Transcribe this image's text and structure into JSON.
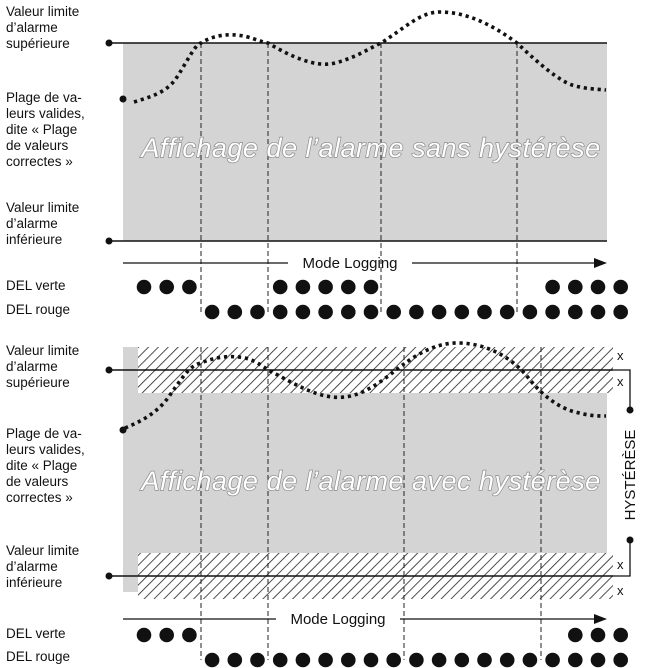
{
  "panel_top": {
    "upper_limit_label": "Valeur limite\nd’alarme\nsupérieure",
    "valid_range_label": "Plage de va-\nleurs valides,\ndite « Plage\nde valeurs\ncorrectes »",
    "lower_limit_label": "Valeur limite\nd’alarme\ninférieure",
    "title": "Affichage de l’alarme sans hystérèse",
    "mode_label": "Mode Logging",
    "led_green_label": "DEL verte",
    "led_red_label": "DEL rouge",
    "green_leds": [
      1,
      1,
      1,
      0,
      0,
      0,
      1,
      1,
      1,
      1,
      1,
      0,
      0,
      0,
      0,
      0,
      0,
      0,
      1,
      1,
      1,
      1
    ],
    "red_leds": [
      0,
      0,
      0,
      1,
      1,
      1,
      1,
      1,
      1,
      1,
      1,
      1,
      1,
      1,
      1,
      1,
      1,
      1,
      1,
      1,
      1,
      1
    ]
  },
  "panel_bottom": {
    "upper_limit_label": "Valeur limite\nd’alarme\nsupérieure",
    "valid_range_label": "Plage de va-\nleurs valides,\ndite « Plage\nde valeurs\ncorrectes »",
    "lower_limit_label": "Valeur limite\nd’alarme\ninférieure",
    "title": "Affichage de l’alarme avec hystérèse",
    "mode_label": "Mode Logging",
    "led_green_label": "DEL verte",
    "led_red_label": "DEL rouge",
    "hysteresis_label": "HYSTÉRÈSE",
    "x_label": "x",
    "green_leds": [
      1,
      1,
      1,
      0,
      0,
      0,
      0,
      0,
      0,
      0,
      0,
      0,
      0,
      0,
      0,
      0,
      0,
      0,
      0,
      1,
      1,
      1
    ],
    "red_leds": [
      0,
      0,
      0,
      1,
      1,
      1,
      1,
      1,
      1,
      1,
      1,
      1,
      1,
      1,
      1,
      1,
      1,
      1,
      1,
      1,
      1,
      1
    ]
  },
  "colors": {
    "plot_fill": "#d4d4d4",
    "line": "#111111",
    "led": "#111111",
    "title_outline": "#8c8c8c"
  }
}
